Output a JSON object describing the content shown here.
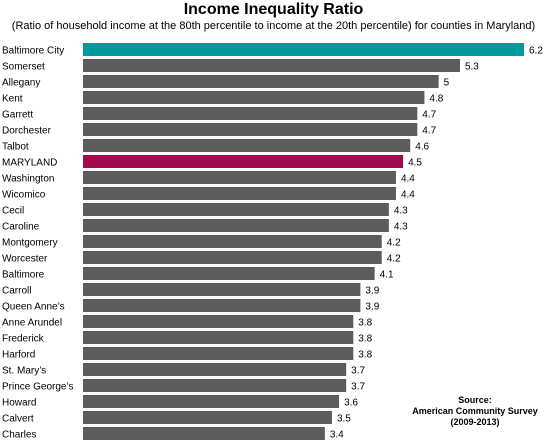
{
  "chart_data": {
    "type": "bar",
    "orientation": "horizontal",
    "title": "Income Inequality Ratio",
    "subtitle": "(Ratio of household income at the 80th percentile to income at the 20th percentile) for counties in Maryland)",
    "categories": [
      "Baltimore City",
      "Somerset",
      "Allegany",
      "Kent",
      "Garrett",
      "Dorchester",
      "Talbot",
      "MARYLAND",
      "Washington",
      "Wicomico",
      "Cecil",
      "Caroline",
      "Montgomery",
      "Worcester",
      "Baltimore",
      "Carroll",
      "Queen Anne’s",
      "Anne Arundel",
      "Frederick",
      "Harford",
      "St. Mary’s",
      "Prince George’s",
      "Howard",
      "Calvert",
      "Charles"
    ],
    "values": [
      6.2,
      5.3,
      5,
      4.8,
      4.7,
      4.7,
      4.6,
      4.5,
      4.4,
      4.4,
      4.3,
      4.3,
      4.2,
      4.2,
      4.1,
      3.9,
      3.9,
      3.8,
      3.8,
      3.8,
      3.7,
      3.7,
      3.6,
      3.5,
      3.4
    ],
    "value_labels": [
      "6.2",
      "5.3",
      "5",
      "4.8",
      "4.7",
      "4.7",
      "4.6",
      "4.5",
      "4.4",
      "4.4",
      "4.3",
      "4.3",
      "4.2",
      "4.2",
      "4.1",
      "3.9",
      "3.9",
      "3.8",
      "3.8",
      "3.8",
      "3.7",
      "3.7",
      "3.6",
      "3.5",
      "3.4"
    ],
    "colors": {
      "default": "#5c5c5c",
      "highlight_top": "#009a9a",
      "highlight_state": "#a3094f"
    },
    "highlights": {
      "Baltimore City": "highlight_top",
      "MARYLAND": "highlight_state"
    },
    "grid": false,
    "legend": "none"
  },
  "source": {
    "label": "Source:",
    "line1": "American Community Survey",
    "line2": "(2009-2013)"
  }
}
